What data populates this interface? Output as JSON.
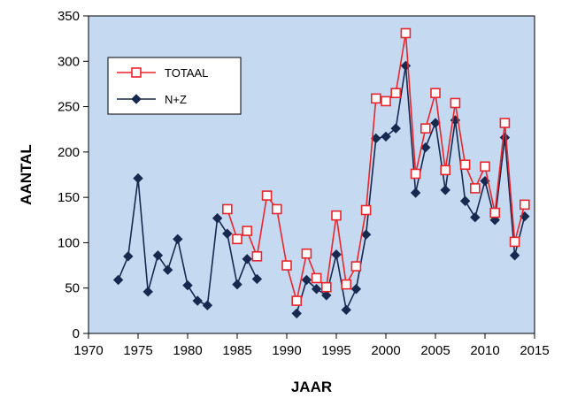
{
  "chart_data": {
    "type": "line",
    "title": "",
    "xlabel": "JAAR",
    "ylabel": "AANTAL",
    "xlim": [
      1970,
      2015
    ],
    "ylim": [
      0,
      350
    ],
    "xticks": [
      1970,
      1975,
      1980,
      1985,
      1990,
      1995,
      2000,
      2005,
      2010,
      2015
    ],
    "yticks": [
      0,
      50,
      100,
      150,
      200,
      250,
      300,
      350
    ],
    "grid": false,
    "legend_position": "top-left",
    "plot_background": "#c5d9f1",
    "series": [
      {
        "name": "N+Z",
        "color": "#17294f",
        "marker": "diamond",
        "x": [
          1973,
          1974,
          1975,
          1976,
          1977,
          1978,
          1979,
          1980,
          1981,
          1982,
          1983,
          1984,
          1985,
          1986,
          1987,
          1988,
          1989,
          1990,
          1991,
          1992,
          1993,
          1994,
          1995,
          1996,
          1997,
          1998,
          1999,
          2000,
          2001,
          2002,
          2003,
          2004,
          2005,
          2006,
          2007,
          2008,
          2009,
          2010,
          2011,
          2012,
          2013,
          2014
        ],
        "y": [
          59,
          85,
          171,
          46,
          86,
          70,
          104,
          53,
          36,
          31,
          127,
          110,
          54,
          82,
          60,
          null,
          null,
          null,
          22,
          59,
          49,
          42,
          87,
          26,
          49,
          109,
          215,
          217,
          226,
          295,
          155,
          205,
          232,
          158,
          235,
          146,
          128,
          168,
          125,
          216,
          86,
          129
        ]
      },
      {
        "name": "TOTAAL",
        "color": "#e8262c",
        "marker": "square",
        "x": [
          1984,
          1985,
          1986,
          1987,
          1988,
          1989,
          1990,
          1991,
          1992,
          1993,
          1994,
          1995,
          1996,
          1997,
          1998,
          1999,
          2000,
          2001,
          2002,
          2003,
          2004,
          2005,
          2006,
          2007,
          2008,
          2009,
          2010,
          2011,
          2012,
          2013,
          2014
        ],
        "y": [
          137,
          104,
          113,
          85,
          152,
          137,
          75,
          36,
          88,
          61,
          51,
          130,
          54,
          74,
          136,
          259,
          256,
          265,
          331,
          176,
          226,
          265,
          180,
          254,
          186,
          160,
          184,
          133,
          232,
          101,
          142
        ]
      }
    ]
  }
}
